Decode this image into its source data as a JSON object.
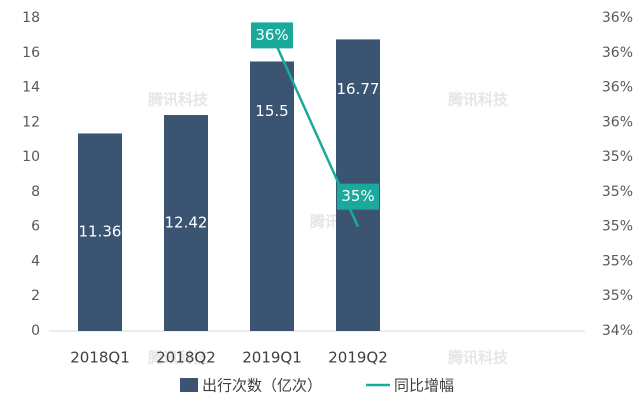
{
  "chart_data": {
    "type": "bar-line",
    "categories": [
      "2018Q1",
      "2018Q2",
      "2019Q1",
      "2019Q2"
    ],
    "series": [
      {
        "name": "出行次数（亿次）",
        "type": "bar",
        "color": "#3b5472",
        "values": [
          11.36,
          12.42,
          15.5,
          16.77
        ]
      },
      {
        "name": "同比增幅",
        "type": "line",
        "axis": "y2",
        "color": "#1aaa9b",
        "values": [
          null,
          null,
          36.1,
          35.0
        ],
        "value_labels": [
          null,
          null,
          "36%",
          "35%"
        ]
      }
    ],
    "ylim": [
      0,
      18
    ],
    "yticks": [
      0,
      2,
      4,
      6,
      8,
      10,
      12,
      14,
      16,
      18
    ],
    "y2lim": [
      34.4,
      36.2
    ],
    "y2ticks": [
      {
        "value": 34.4,
        "label": "34%"
      },
      {
        "value": 34.6,
        "label": "35%"
      },
      {
        "value": 34.8,
        "label": "35%"
      },
      {
        "value": 35.0,
        "label": "35%"
      },
      {
        "value": 35.2,
        "label": "35%"
      },
      {
        "value": 35.4,
        "label": "35%"
      },
      {
        "value": 35.6,
        "label": "36%"
      },
      {
        "value": 35.8,
        "label": "36%"
      },
      {
        "value": 36.0,
        "label": "36%"
      },
      {
        "value": 36.2,
        "label": "36%"
      }
    ],
    "legend": "bottom",
    "watermark": "腾讯科技"
  }
}
